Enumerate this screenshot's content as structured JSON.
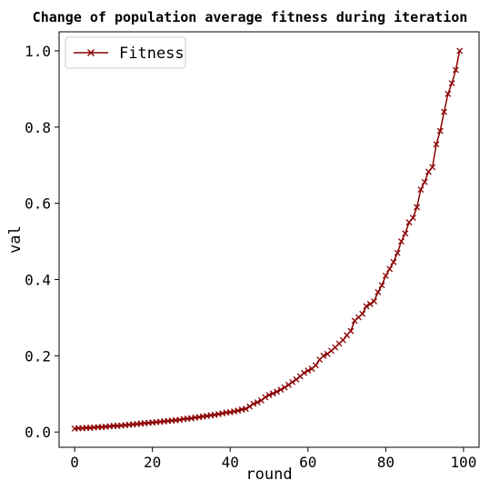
{
  "chart_data": {
    "type": "line",
    "title": "Change of population average fitness during iteration",
    "xlabel": "round",
    "ylabel": "val",
    "xlim": [
      -4,
      104
    ],
    "ylim": [
      -0.04,
      1.05
    ],
    "xticks": [
      0,
      20,
      40,
      60,
      80,
      100
    ],
    "yticks": [
      0.0,
      0.2,
      0.4,
      0.6,
      0.8,
      1.0
    ],
    "xtick_labels": [
      "0",
      "20",
      "40",
      "60",
      "80",
      "100"
    ],
    "ytick_labels": [
      "0.0",
      "0.2",
      "0.4",
      "0.6",
      "0.8",
      "1.0"
    ],
    "grid": false,
    "legend_position": "top-left",
    "colors": {
      "series": "#8b0000"
    },
    "series": [
      {
        "name": "Fitness",
        "marker": "x",
        "x": [
          0,
          1,
          2,
          3,
          4,
          5,
          6,
          7,
          8,
          9,
          10,
          11,
          12,
          13,
          14,
          15,
          16,
          17,
          18,
          19,
          20,
          21,
          22,
          23,
          24,
          25,
          26,
          27,
          28,
          29,
          30,
          31,
          32,
          33,
          34,
          35,
          36,
          37,
          38,
          39,
          40,
          41,
          42,
          43,
          44,
          45,
          46,
          47,
          48,
          49,
          50,
          51,
          52,
          53,
          54,
          55,
          56,
          57,
          58,
          59,
          60,
          61,
          62,
          63,
          64,
          65,
          66,
          67,
          68,
          69,
          70,
          71,
          72,
          73,
          74,
          75,
          76,
          77,
          78,
          79,
          80,
          81,
          82,
          83,
          84,
          85,
          86,
          87,
          88,
          89,
          90,
          91,
          92,
          93,
          94,
          95,
          96,
          97,
          98,
          99
        ],
        "values": [
          0.009,
          0.01,
          0.01,
          0.011,
          0.011,
          0.012,
          0.013,
          0.013,
          0.014,
          0.015,
          0.016,
          0.016,
          0.017,
          0.018,
          0.019,
          0.02,
          0.021,
          0.022,
          0.023,
          0.024,
          0.025,
          0.026,
          0.027,
          0.028,
          0.029,
          0.03,
          0.031,
          0.032,
          0.034,
          0.035,
          0.036,
          0.038,
          0.039,
          0.041,
          0.042,
          0.044,
          0.045,
          0.047,
          0.049,
          0.051,
          0.052,
          0.054,
          0.056,
          0.059,
          0.061,
          0.067,
          0.074,
          0.078,
          0.083,
          0.091,
          0.097,
          0.101,
          0.106,
          0.111,
          0.117,
          0.124,
          0.131,
          0.138,
          0.146,
          0.155,
          0.161,
          0.166,
          0.175,
          0.19,
          0.2,
          0.205,
          0.213,
          0.222,
          0.232,
          0.241,
          0.254,
          0.265,
          0.292,
          0.301,
          0.31,
          0.33,
          0.336,
          0.343,
          0.367,
          0.385,
          0.41,
          0.428,
          0.446,
          0.47,
          0.5,
          0.521,
          0.55,
          0.562,
          0.59,
          0.636,
          0.656,
          0.683,
          0.695,
          0.755,
          0.79,
          0.84,
          0.887,
          0.915,
          0.95,
          1.0
        ]
      }
    ]
  }
}
